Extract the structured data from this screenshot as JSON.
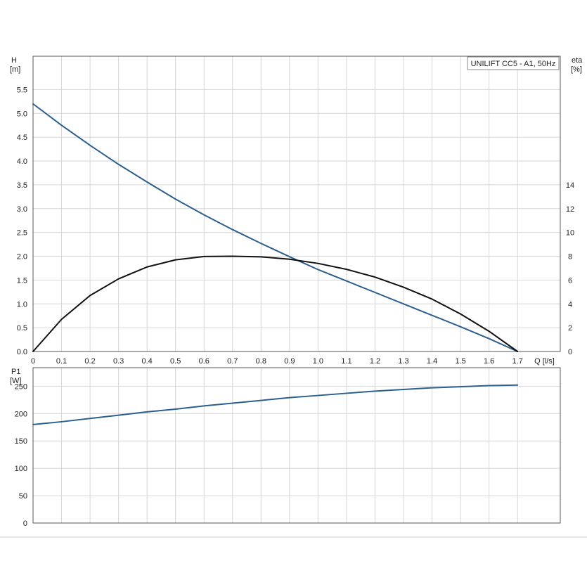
{
  "chart_data": [
    {
      "type": "line",
      "title": "",
      "legend_title": "UNILIFT CC5 - A1, 50Hz",
      "legend_position": "top-right",
      "xlabel": "Q [l/s]",
      "ylabel_line1": "H",
      "ylabel_line2": "[m]",
      "y2label_line1": "eta",
      "y2label_line2": "[%]",
      "xlim": [
        0,
        1.85
      ],
      "ylim": [
        0,
        6.2
      ],
      "y2lim": [
        0,
        24.8
      ],
      "grid": true,
      "x_ticks": [
        0,
        0.1,
        0.2,
        0.3,
        0.4,
        0.5,
        0.6,
        0.7,
        0.8,
        0.9,
        1.0,
        1.1,
        1.2,
        1.3,
        1.4,
        1.5,
        1.6,
        1.7
      ],
      "x_tick_labels": [
        "0",
        "0.1",
        "0.2",
        "0.3",
        "0.4",
        "0.5",
        "0.6",
        "0.7",
        "0.8",
        "0.9",
        "1.0",
        "1.1",
        "1.2",
        "1.3",
        "1.4",
        "1.5",
        "1.6",
        "1.7"
      ],
      "y_ticks": [
        0,
        0.5,
        1.0,
        1.5,
        2.0,
        2.5,
        3.0,
        3.5,
        4.0,
        4.5,
        5.0,
        5.5
      ],
      "y_tick_labels": [
        "0.0",
        "0.5",
        "1.0",
        "1.5",
        "2.0",
        "2.5",
        "3.0",
        "3.5",
        "4.0",
        "4.5",
        "5.0",
        "5.5"
      ],
      "y2_ticks": [
        0,
        2,
        4,
        6,
        8,
        10,
        12,
        14
      ],
      "y2_tick_labels": [
        "0",
        "2",
        "4",
        "6",
        "8",
        "10",
        "12",
        "14"
      ],
      "series": [
        {
          "axis": "left",
          "color": "#2d5f8e",
          "x": [
            0,
            0.1,
            0.2,
            0.3,
            0.4,
            0.5,
            0.6,
            0.7,
            0.8,
            0.9,
            1.0,
            1.1,
            1.2,
            1.3,
            1.4,
            1.5,
            1.6,
            1.7
          ],
          "y": [
            5.2,
            4.75,
            4.33,
            3.93,
            3.56,
            3.2,
            2.87,
            2.56,
            2.27,
            1.99,
            1.72,
            1.48,
            1.24,
            1.0,
            0.76,
            0.52,
            0.27,
            0.0
          ]
        },
        {
          "axis": "right",
          "color": "#111111",
          "x": [
            0,
            0.1,
            0.2,
            0.3,
            0.4,
            0.5,
            0.6,
            0.7,
            0.8,
            0.9,
            1.0,
            1.1,
            1.2,
            1.3,
            1.4,
            1.5,
            1.6,
            1.7
          ],
          "y": [
            0,
            2.7,
            4.7,
            6.1,
            7.1,
            7.7,
            7.98,
            8.0,
            7.95,
            7.75,
            7.4,
            6.9,
            6.25,
            5.4,
            4.4,
            3.15,
            1.7,
            0
          ]
        }
      ]
    },
    {
      "type": "line",
      "title": "",
      "ylabel_line1": "P1",
      "ylabel_line2": "[W]",
      "xlim": [
        0,
        1.85
      ],
      "ylim": [
        0,
        283.8
      ],
      "grid": true,
      "x_ticks": [
        0,
        0.1,
        0.2,
        0.3,
        0.4,
        0.5,
        0.6,
        0.7,
        0.8,
        0.9,
        1.0,
        1.1,
        1.2,
        1.3,
        1.4,
        1.5,
        1.6,
        1.7
      ],
      "y_ticks": [
        0,
        50,
        100,
        150,
        200,
        250
      ],
      "y_tick_labels": [
        "0",
        "50",
        "100",
        "150",
        "200",
        "250"
      ],
      "series": [
        {
          "axis": "left",
          "color": "#2d5f8e",
          "x": [
            0,
            0.1,
            0.2,
            0.3,
            0.4,
            0.5,
            0.6,
            0.7,
            0.8,
            0.9,
            1.0,
            1.1,
            1.2,
            1.3,
            1.4,
            1.5,
            1.6,
            1.7
          ],
          "y": [
            180,
            185,
            191,
            197,
            203,
            208,
            214,
            219,
            224,
            229,
            233,
            237,
            241,
            244,
            247,
            249,
            251,
            252
          ]
        }
      ]
    }
  ]
}
